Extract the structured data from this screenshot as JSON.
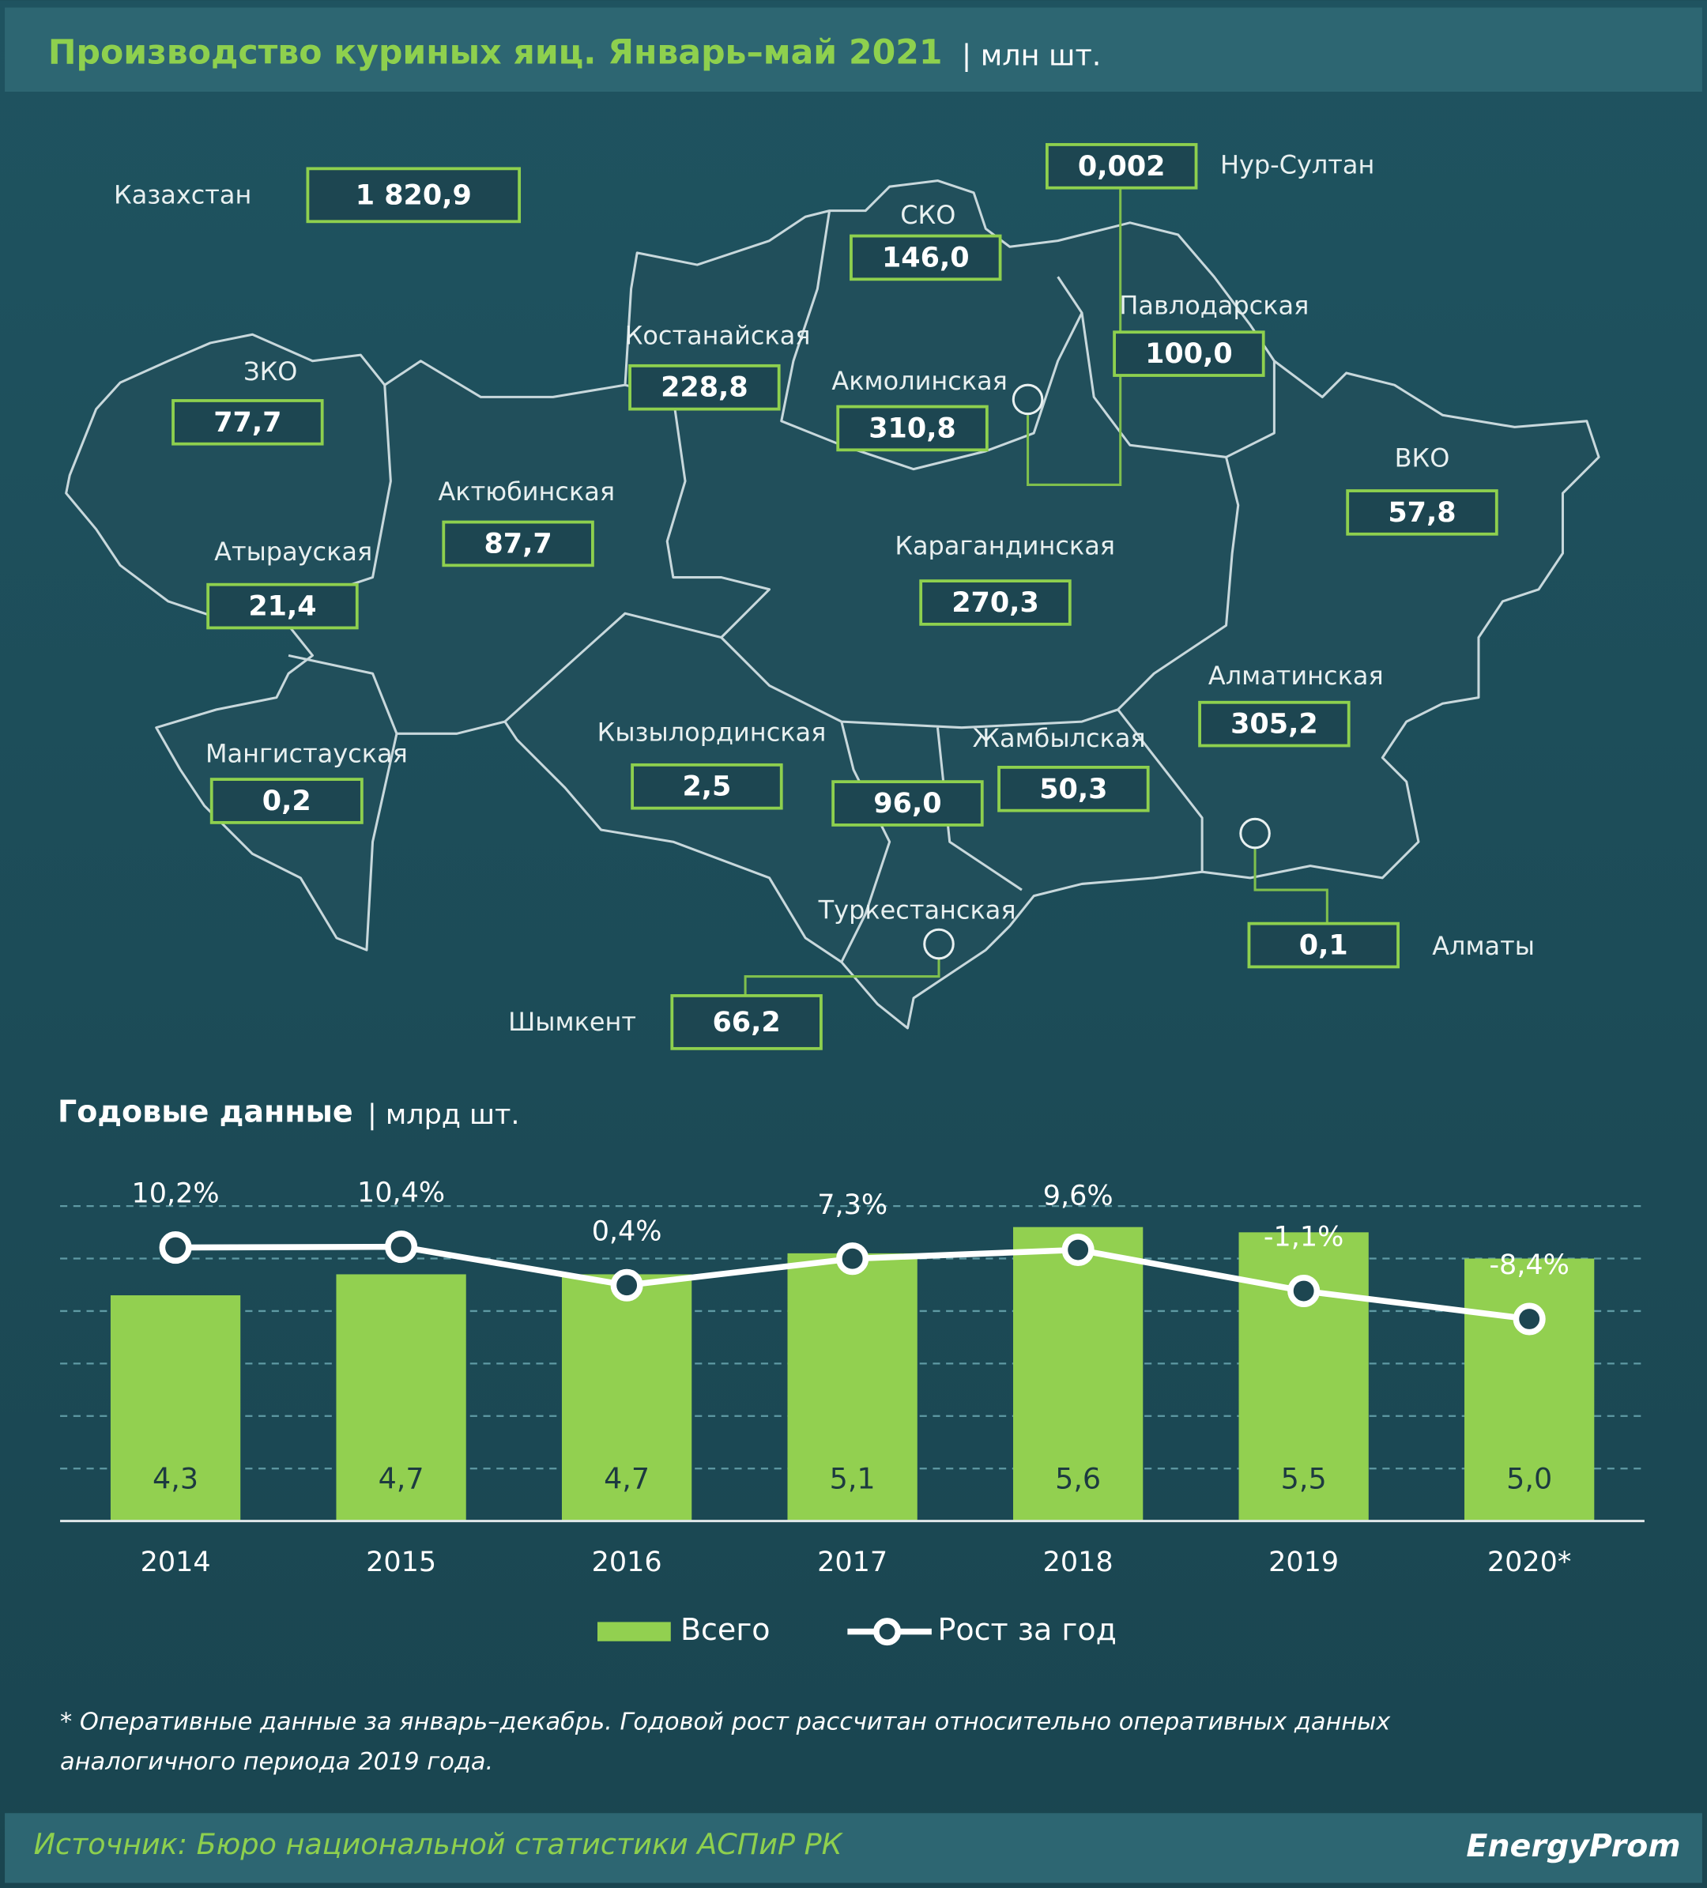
{
  "title": "Производство куриных яиц. Январь–май 2021",
  "unit": "| млн шт.",
  "map": {
    "total": {
      "name": "Казахстан",
      "value": "1 820,9"
    },
    "regions": [
      {
        "name": "Нур-Султан",
        "value": "0,002"
      },
      {
        "name": "СКО",
        "value": "146,0"
      },
      {
        "name": "Павлодарская",
        "value": "100,0"
      },
      {
        "name": "Костанайская",
        "value": "228,8"
      },
      {
        "name": "Акмолинская",
        "value": "310,8"
      },
      {
        "name": "ЗКО",
        "value": "77,7"
      },
      {
        "name": "ВКО",
        "value": "57,8"
      },
      {
        "name": "Актюбинская",
        "value": "87,7"
      },
      {
        "name": "Атырауская",
        "value": "21,4"
      },
      {
        "name": "Карагандинская",
        "value": "270,3"
      },
      {
        "name": "Алматинская",
        "value": "305,2"
      },
      {
        "name": "Мангистауская",
        "value": "0,2"
      },
      {
        "name": "Кызылординская",
        "value": "2,5"
      },
      {
        "name": "Жамбылская",
        "value": "50,3"
      },
      {
        "name": "Туркестанская",
        "value": "96,0"
      },
      {
        "name": "Алматы",
        "value": "0,1"
      },
      {
        "name": "Шымкент",
        "value": "66,2"
      }
    ]
  },
  "chart_data": {
    "type": "bar",
    "title": "Годовые данные",
    "unit": "| млрд шт.",
    "categories": [
      "2014",
      "2015",
      "2016",
      "2017",
      "2018",
      "2019",
      "2020*"
    ],
    "series": [
      {
        "name": "Всего",
        "color": "#92d050",
        "values": [
          4.3,
          4.7,
          4.7,
          5.1,
          5.6,
          5.5,
          5.0
        ],
        "value_labels": [
          "4,3",
          "4,7",
          "4,7",
          "5,1",
          "5,6",
          "5,5",
          "5,0"
        ]
      },
      {
        "name": "Рост за год",
        "type": "line",
        "axis": "y2",
        "color": "#ffffff",
        "values": [
          10.2,
          10.4,
          0.4,
          7.3,
          9.6,
          -1.1,
          -8.4
        ],
        "value_labels": [
          "10,2%",
          "10,4%",
          "0,4%",
          "7,3%",
          "9,6%",
          "-1,1%",
          "-8,4%"
        ]
      }
    ],
    "ylim": [
      0,
      6
    ],
    "yticks": [
      1,
      2,
      3,
      4,
      5,
      6
    ],
    "y2lim": [
      -61,
      21
    ],
    "grid": true,
    "legend": "bottom"
  },
  "footnote": [
    "* Оперативные данные за январь–декабрь. Годовой рост рассчитан относительно оперативных данных",
    "аналогичного периода 2019 года."
  ],
  "source": "Источник: Бюро национальной  статистики АСПиР РК",
  "logo": "EnergyProm"
}
